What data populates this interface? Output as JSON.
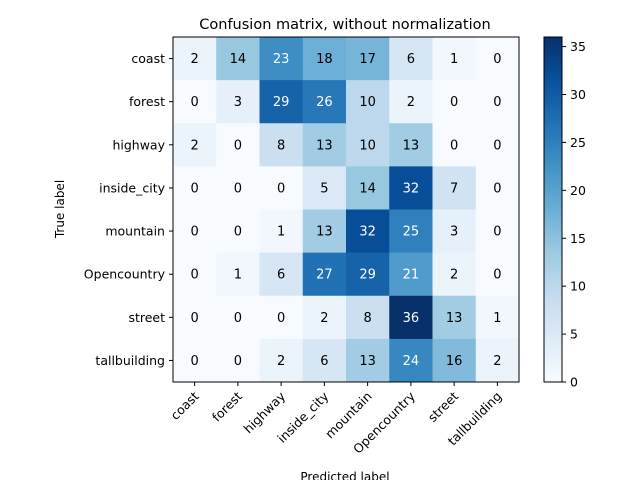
{
  "chart_data": {
    "type": "heatmap",
    "title": "Confusion matrix, without normalization",
    "xlabel": "Predicted label",
    "ylabel": "True label",
    "row_labels": [
      "coast",
      "forest",
      "highway",
      "inside_city",
      "mountain",
      "Opencountry",
      "street",
      "tallbuilding"
    ],
    "col_labels": [
      "coast",
      "forest",
      "highway",
      "inside_city",
      "mountain",
      "Opencountry",
      "street",
      "tallbuilding"
    ],
    "values": [
      [
        2,
        14,
        23,
        18,
        17,
        6,
        1,
        0
      ],
      [
        0,
        3,
        29,
        26,
        10,
        2,
        0,
        0
      ],
      [
        2,
        0,
        8,
        13,
        10,
        13,
        0,
        0
      ],
      [
        0,
        0,
        0,
        5,
        14,
        32,
        7,
        0
      ],
      [
        0,
        0,
        1,
        13,
        32,
        25,
        3,
        0
      ],
      [
        0,
        1,
        6,
        27,
        29,
        21,
        2,
        0
      ],
      [
        0,
        0,
        0,
        2,
        8,
        36,
        13,
        1
      ],
      [
        0,
        0,
        2,
        6,
        13,
        24,
        16,
        2
      ]
    ],
    "colormap": "Blues",
    "vmin": 0,
    "vmax": 36,
    "colorbar_ticks": [
      "0",
      "5",
      "10",
      "15",
      "20",
      "25",
      "30",
      "35"
    ]
  }
}
